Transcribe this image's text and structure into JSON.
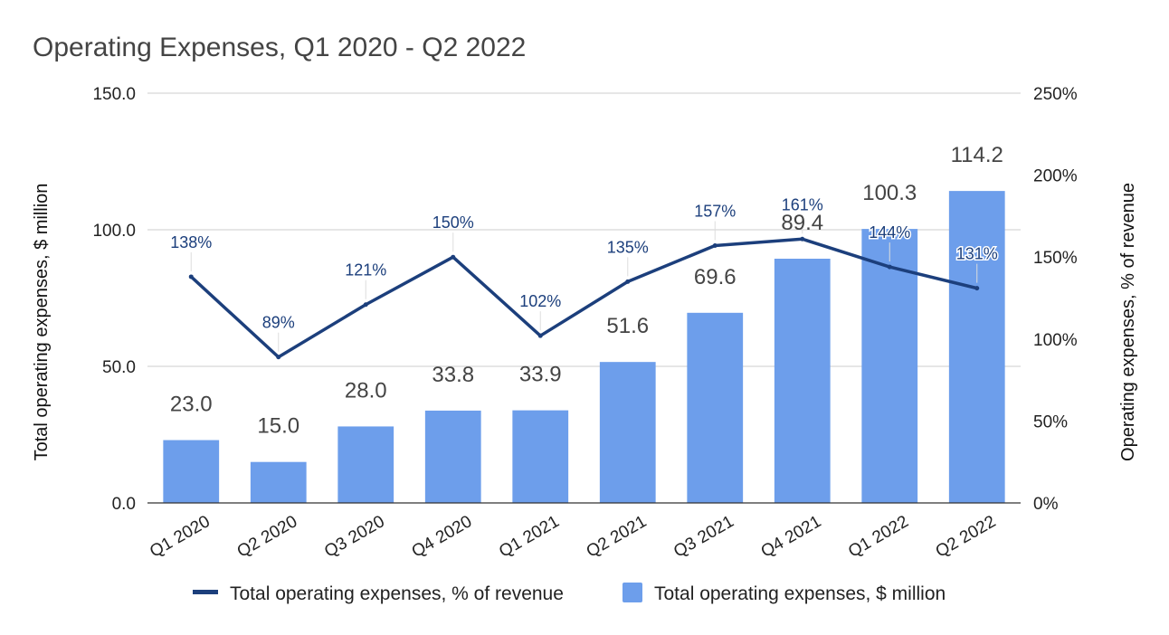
{
  "chart_data": {
    "type": "bar",
    "title": "Operating Expenses, Q1 2020 - Q2 2022",
    "categories": [
      "Q1 2020",
      "Q2 2020",
      "Q3 2020",
      "Q4 2020",
      "Q1 2021",
      "Q2 2021",
      "Q3 2021",
      "Q4 2021",
      "Q1 2022",
      "Q2 2022"
    ],
    "series": [
      {
        "name": "Total operating expenses, $ million",
        "kind": "bar",
        "axis": "left",
        "color": "#6d9eeb",
        "values": [
          23.0,
          15.0,
          28.0,
          33.8,
          33.9,
          51.6,
          69.6,
          89.4,
          100.3,
          114.2
        ],
        "labels": [
          "23.0",
          "15.0",
          "28.0",
          "33.8",
          "33.9",
          "51.6",
          "69.6",
          "89.4",
          "100.3",
          "114.2"
        ]
      },
      {
        "name": "Total operating expenses, % of revenue",
        "kind": "line",
        "axis": "right",
        "color": "#1c3f7c",
        "values": [
          138,
          89,
          121,
          150,
          102,
          135,
          157,
          161,
          144,
          131
        ],
        "labels": [
          "138%",
          "89%",
          "121%",
          "150%",
          "102%",
          "135%",
          "157%",
          "161%",
          "144%",
          "131%"
        ]
      }
    ],
    "y_left": {
      "label": "Total operating expenses,  $ million",
      "ylim": [
        0,
        150
      ],
      "ticks": [
        0,
        50,
        100,
        150
      ],
      "tick_labels": [
        "0.0",
        "50.0",
        "100.0",
        "150.0"
      ]
    },
    "y_right": {
      "label": "Operating expenses, % of revenue",
      "ylim": [
        0,
        250
      ],
      "ticks": [
        0,
        50,
        100,
        150,
        200,
        250
      ],
      "tick_labels": [
        "0%",
        "50%",
        "100%",
        "150%",
        "200%",
        "250%"
      ]
    },
    "grid": true,
    "legend_position": "bottom",
    "legend": [
      "Total operating expenses, % of revenue",
      "Total operating expenses, $ million"
    ]
  }
}
